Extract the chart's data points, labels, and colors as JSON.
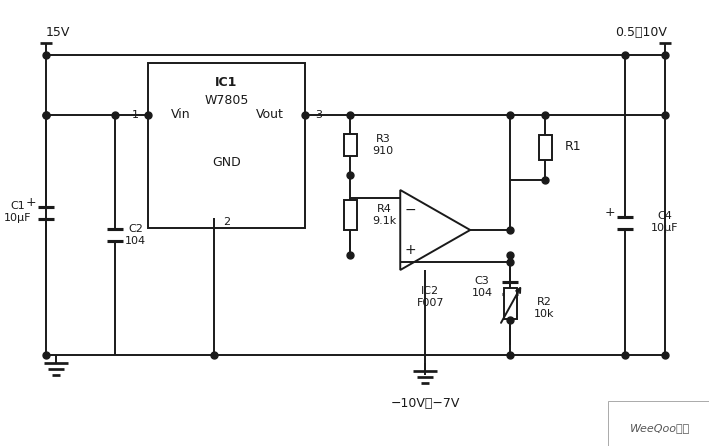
{
  "bg_color": "#ffffff",
  "line_color": "#1a1a1a",
  "text_color": "#1a1a1a",
  "watermark": "WeeQoo维库",
  "supply_label": "15V",
  "output_label": "0.5～10V",
  "neg_label": "−10V～−7V"
}
